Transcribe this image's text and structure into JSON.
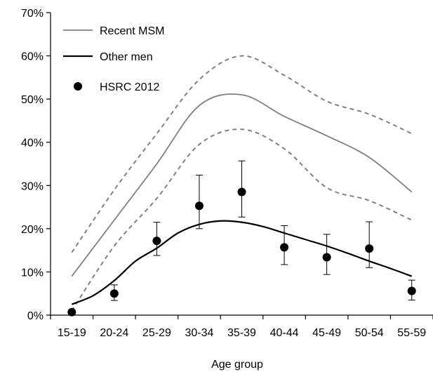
{
  "chart_data": {
    "type": "line",
    "xlabel": "Age group",
    "ylabel": "",
    "ylim": [
      0,
      70
    ],
    "y_tick_values": [
      0,
      10,
      20,
      30,
      40,
      50,
      60,
      70
    ],
    "y_tick_labels": [
      "0%",
      "10%",
      "20%",
      "30%",
      "40%",
      "50%",
      "60%",
      "70%"
    ],
    "categories": [
      "15-19",
      "20-24",
      "25-29",
      "30-34",
      "35-39",
      "40-44",
      "45-49",
      "50-54",
      "55-59"
    ],
    "legend_position": "top-left",
    "grid": false,
    "series": [
      {
        "name": "Recent MSM",
        "style": "thin-line",
        "color": "#808080",
        "x": [
          0,
          1,
          2,
          3,
          4,
          5,
          6,
          7,
          8
        ],
        "values": [
          9,
          22,
          35,
          48.5,
          51,
          46,
          41.5,
          36.5,
          28.5
        ],
        "upper": [
          14.5,
          29,
          42,
          54.5,
          60,
          55.5,
          49.5,
          46.5,
          42
        ],
        "lower": [
          1,
          16,
          27,
          39.5,
          43,
          38.5,
          29.5,
          26.5,
          22
        ]
      },
      {
        "name": "Other men",
        "style": "thick-line",
        "color": "#000000",
        "x": [
          0,
          0.5,
          1,
          1.5,
          2,
          2.5,
          3,
          3.5,
          4,
          4.5,
          5,
          5.5,
          6,
          6.5,
          7,
          7.5,
          8
        ],
        "values": [
          2.5,
          4.5,
          8,
          12.5,
          15.5,
          19,
          21,
          21.8,
          21.5,
          20.5,
          19,
          17.5,
          16,
          14.3,
          12.5,
          10.8,
          9
        ]
      },
      {
        "name": "HSRC 2012",
        "style": "points-with-error-bars",
        "color": "#000000",
        "x": [
          0,
          1,
          2,
          3,
          4,
          5,
          6,
          7,
          8
        ],
        "values": [
          0.7,
          5,
          17.2,
          25.3,
          28.5,
          15.7,
          13.4,
          15.4,
          5.6
        ],
        "err_low": [
          0.3,
          3.4,
          13.8,
          20,
          22.7,
          11.7,
          9.4,
          11,
          3.5
        ],
        "err_high": [
          1.2,
          7,
          21.5,
          32.4,
          35.7,
          20.7,
          18.7,
          21.6,
          8.1
        ]
      }
    ]
  }
}
